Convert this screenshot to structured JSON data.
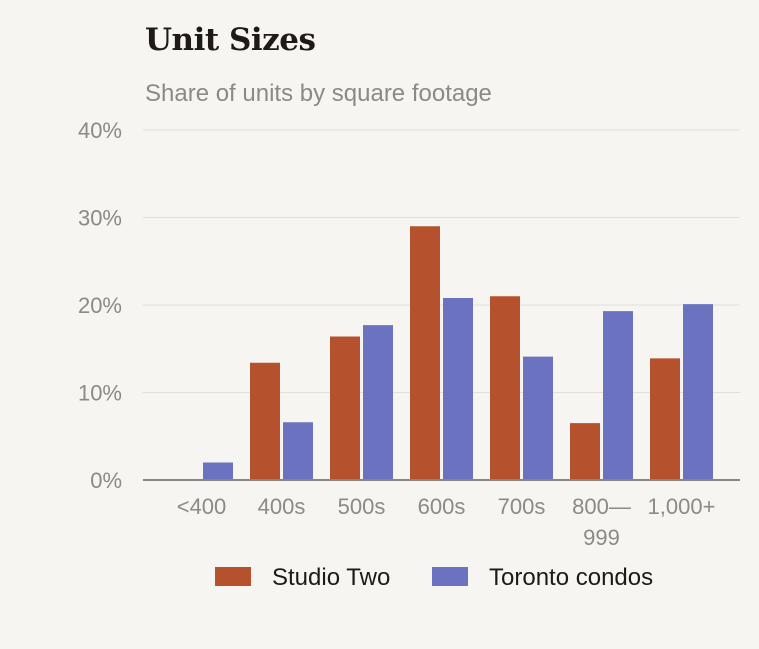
{
  "chart_data": {
    "type": "bar",
    "title": "Unit Sizes",
    "subtitle": "Share of units by square footage",
    "categories": [
      "<400",
      "400s",
      "500s",
      "600s",
      "700s",
      "800—999",
      "1,000+"
    ],
    "category_label_lines": [
      [
        "<400"
      ],
      [
        "400s"
      ],
      [
        "500s"
      ],
      [
        "600s"
      ],
      [
        "700s"
      ],
      [
        "800—",
        "999"
      ],
      [
        "1,000+"
      ]
    ],
    "series": [
      {
        "name": "Studio Two",
        "color": "#b5512d",
        "values": [
          0,
          13.4,
          16.4,
          29.0,
          21.0,
          6.5,
          13.9
        ]
      },
      {
        "name": "Toronto condos",
        "color": "#6b73c1",
        "values": [
          2.0,
          6.6,
          17.7,
          20.8,
          14.1,
          19.3,
          20.1
        ]
      }
    ],
    "ylim": [
      0,
      40
    ],
    "yticks": [
      0,
      10,
      20,
      30,
      40
    ],
    "ytick_labels": [
      "0%",
      "10%",
      "20%",
      "30%",
      "40%"
    ],
    "grid": true,
    "legend_position": "bottom"
  }
}
